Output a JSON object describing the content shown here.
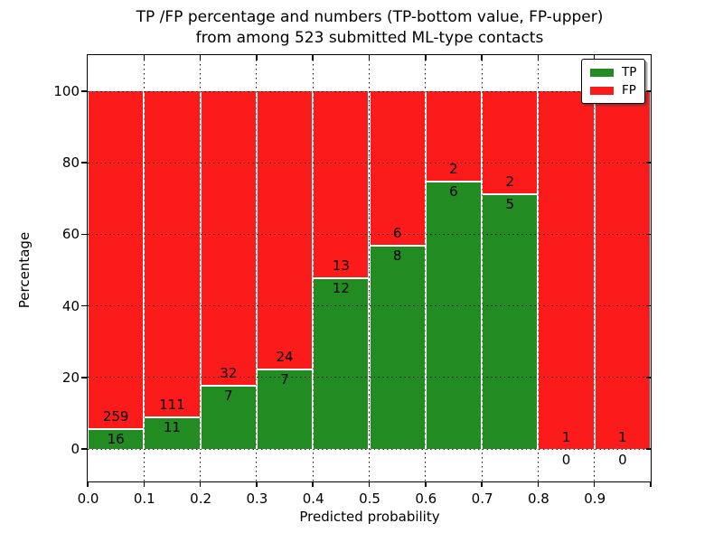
{
  "title": {
    "line1": "TP /FP percentage and numbers (TP-bottom value, FP-upper)",
    "line2": "from among 523 submitted ML-type contacts"
  },
  "axes": {
    "x_label": "Predicted probability",
    "y_label": "Percentage",
    "x_ticks": [
      "0.0",
      "0.1",
      "0.2",
      "0.3",
      "0.4",
      "0.5",
      "0.6",
      "0.7",
      "0.8",
      "0.9"
    ],
    "y_ticks": [
      "0",
      "20",
      "40",
      "60",
      "80",
      "100"
    ],
    "y_tick_values": [
      0,
      20,
      40,
      60,
      80,
      100
    ]
  },
  "legend": {
    "items": [
      {
        "label": "TP",
        "color": "#228b22"
      },
      {
        "label": "FP",
        "color": "#fb1b1b"
      }
    ]
  },
  "colors": {
    "tp": "#228b22",
    "fp": "#fb1b1b",
    "grid": "#000000",
    "bar_edge": "#ffffff"
  },
  "chart_data": {
    "type": "bar",
    "stacked": true,
    "normalized_to_percent": true,
    "title": "TP /FP percentage and numbers (TP-bottom value, FP-upper) from among 523 submitted ML-type contacts",
    "xlabel": "Predicted probability",
    "ylabel": "Percentage",
    "xlim": [
      0.0,
      1.0
    ],
    "ylim": [
      -10,
      110
    ],
    "grid": true,
    "legend_position": "upper right",
    "bin_width": 0.1,
    "categories": [
      "0.0-0.1",
      "0.1-0.2",
      "0.2-0.3",
      "0.3-0.4",
      "0.4-0.5",
      "0.5-0.6",
      "0.6-0.7",
      "0.7-0.8",
      "0.8-0.9",
      "0.9-1.0"
    ],
    "series": [
      {
        "name": "TP",
        "counts": [
          16,
          11,
          7,
          7,
          12,
          8,
          6,
          5,
          0,
          0
        ]
      },
      {
        "name": "FP",
        "counts": [
          259,
          111,
          32,
          24,
          13,
          6,
          2,
          2,
          1,
          1
        ]
      }
    ],
    "tp_percent": [
      5.82,
      9.02,
      17.95,
      22.58,
      48.0,
      57.14,
      75.0,
      71.43,
      0.0,
      0.0
    ],
    "total_contacts": 523
  }
}
